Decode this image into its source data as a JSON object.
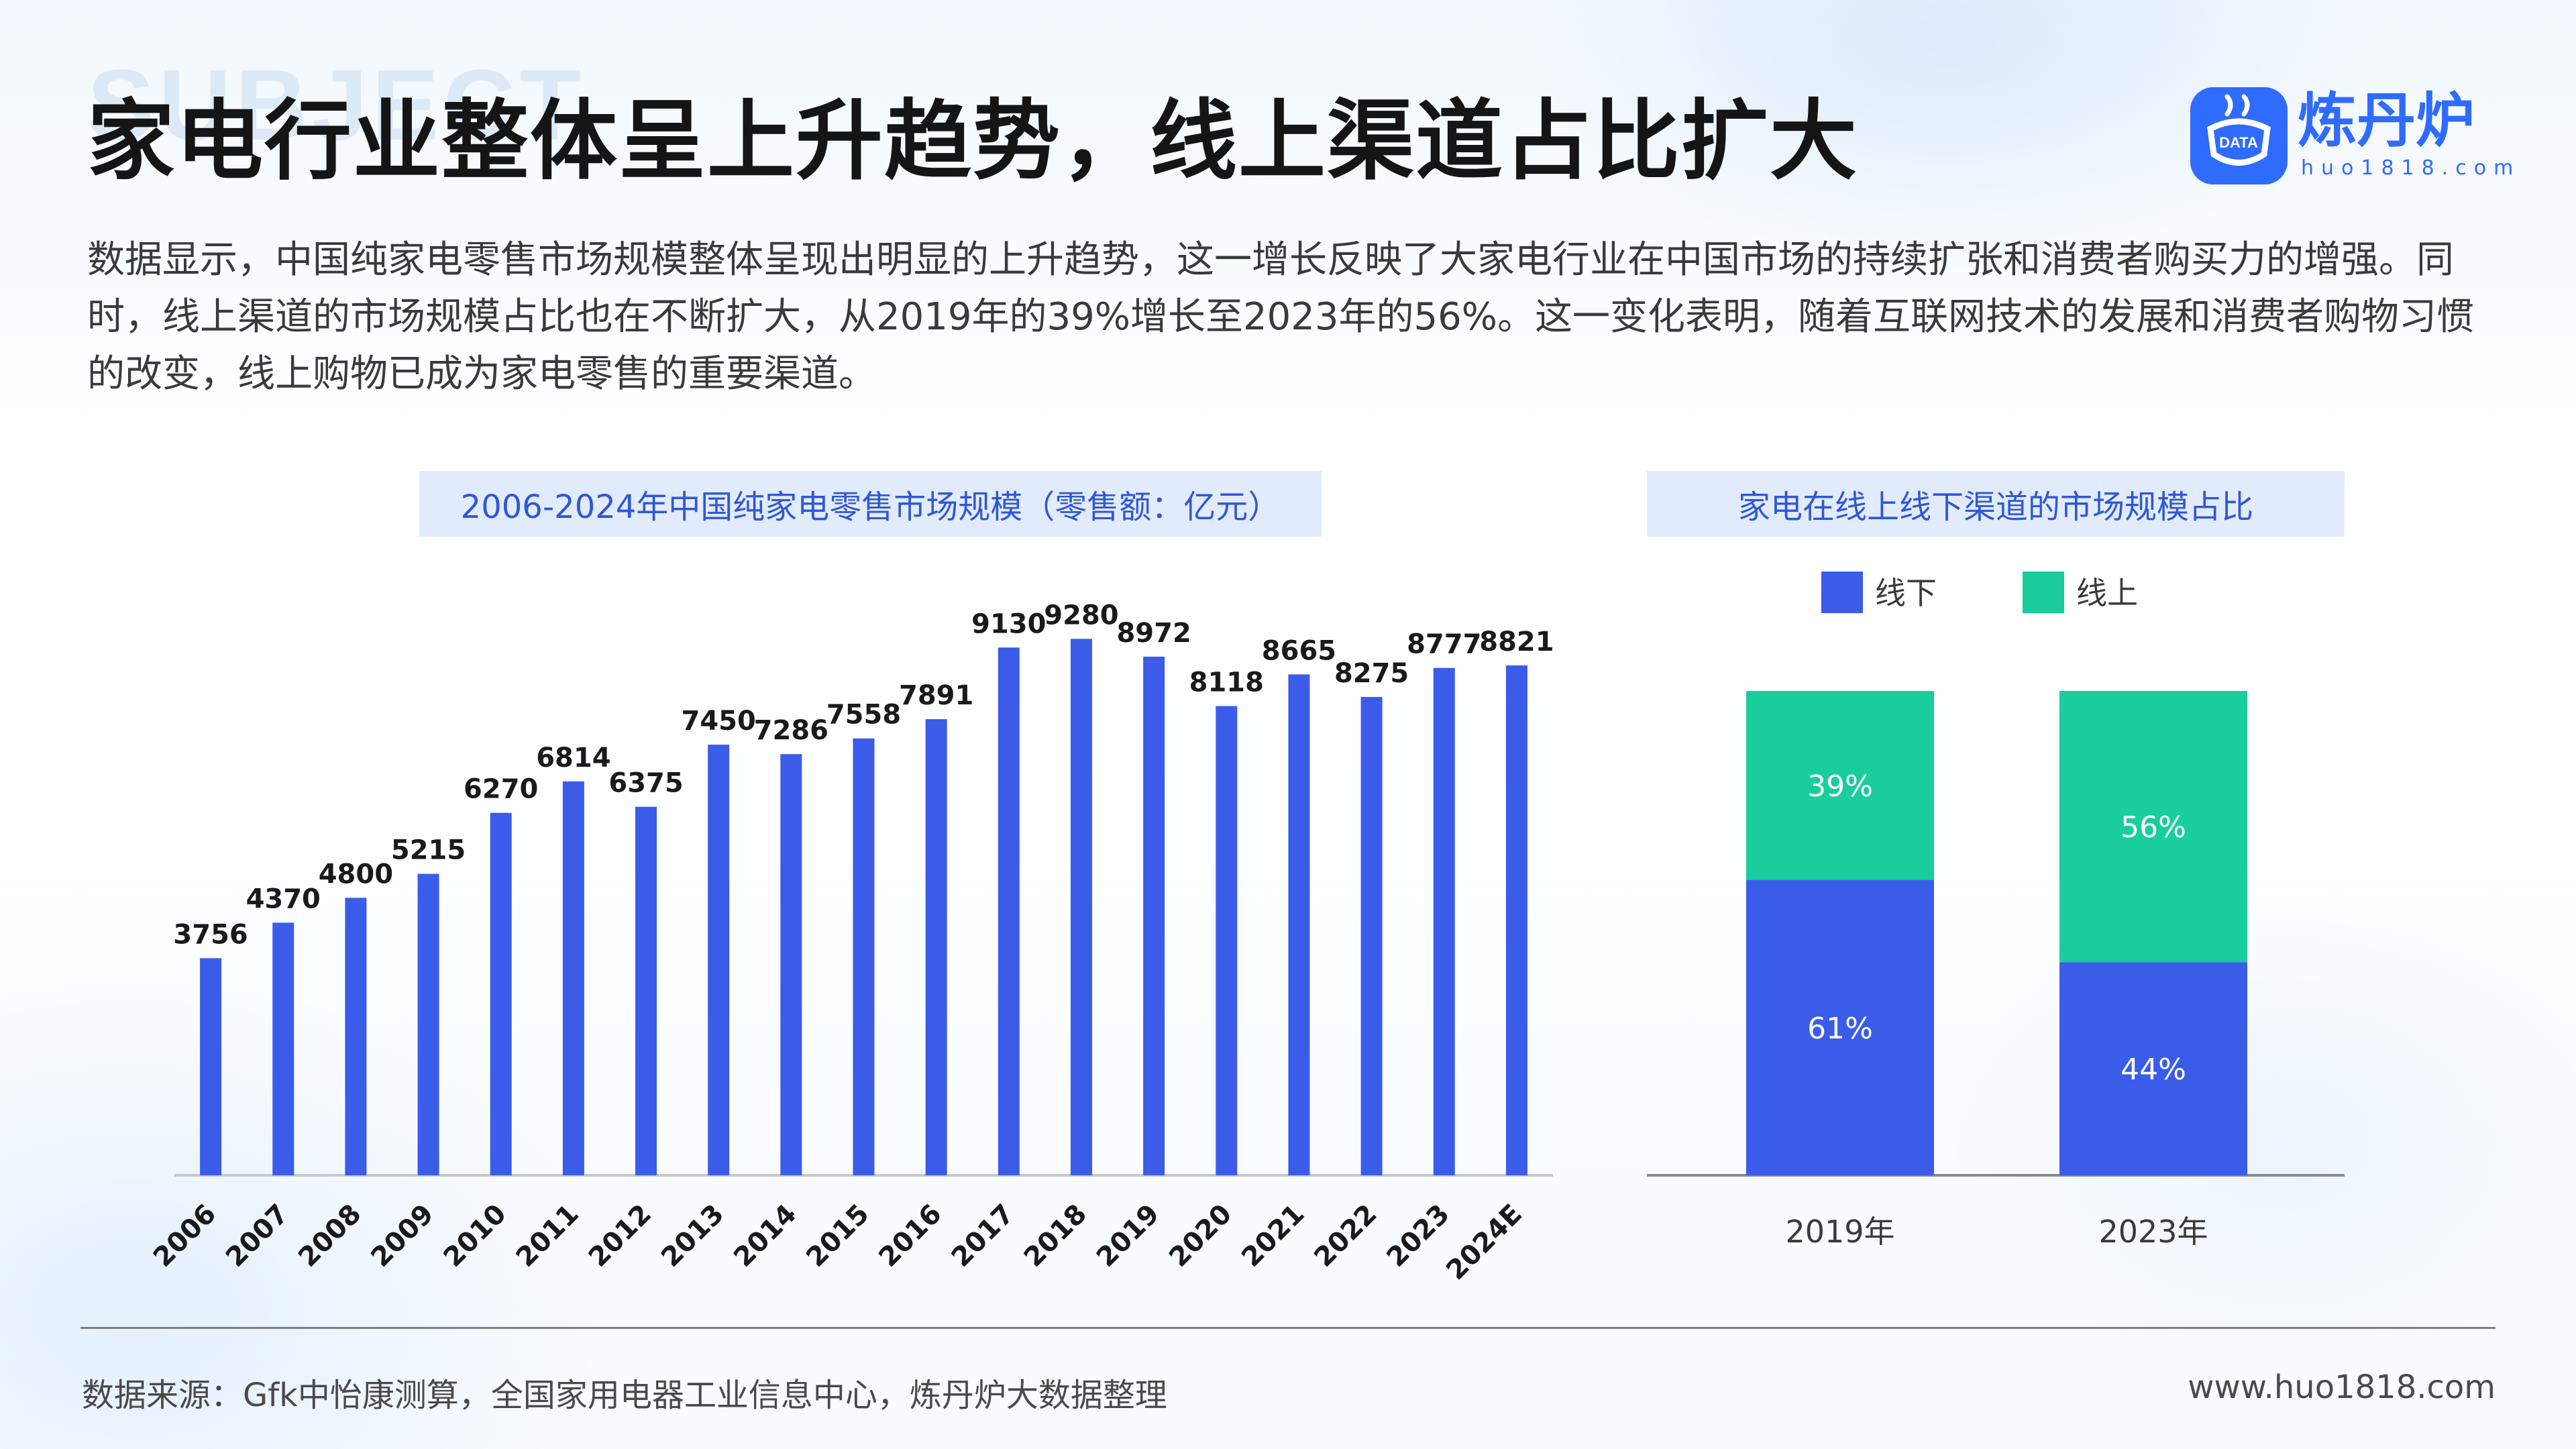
{
  "page": {
    "watermark": "SUBJECT",
    "title": "家电行业整体呈上升趋势，线上渠道占比扩大",
    "intro": "数据显示，中国纯家电零售市场规模整体呈现出明显的上升趋势，这一增长反映了大家电行业在中国市场的持续扩张和消费者购买力的增强。同时，线上渠道的市场规模占比也在不断扩大，从2019年的39%增长至2023年的56%。这一变化表明，随着互联网技术的发展和消费者购物习惯的改变，线上购物已成为家电零售的重要渠道。",
    "source": "数据来源：Gfk中怡康测算，全国家用电器工业信息中心，炼丹炉大数据整理",
    "site": "www.huo1818.com"
  },
  "logo": {
    "name": "炼丹炉",
    "url": "huo1818.com",
    "badge_text": "DATA",
    "color": "#2f6bff",
    "icon": "cauldron-data-icon"
  },
  "colors": {
    "bar": "#3a5ce8",
    "offline": "#3a5ce8",
    "online": "#19cd9c",
    "pill_bg": "#e2ebfb",
    "pill_text": "#2f58d6"
  },
  "chart_data": [
    {
      "type": "bar",
      "title": "2006-2024年中国纯家电零售市场规模（零售额：亿元）",
      "categories": [
        "2006",
        "2007",
        "2008",
        "2009",
        "2010",
        "2011",
        "2012",
        "2013",
        "2014",
        "2015",
        "2016",
        "2017",
        "2018",
        "2019",
        "2020",
        "2021",
        "2022",
        "2023",
        "2024E"
      ],
      "values": [
        3756,
        4370,
        4800,
        5215,
        6270,
        6814,
        6375,
        7450,
        7286,
        7558,
        7891,
        9130,
        9280,
        8972,
        8118,
        8665,
        8275,
        8777,
        8821
      ],
      "ylim": [
        0,
        9400
      ],
      "grid": false,
      "data_labels": true
    },
    {
      "type": "bar",
      "stacked": true,
      "percent": true,
      "title": "家电在线上线下渠道的市场规模占比",
      "categories": [
        "2019年",
        "2023年"
      ],
      "series": [
        {
          "name": "线下",
          "values": [
            61,
            44
          ],
          "labels": [
            "61%",
            "44%"
          ]
        },
        {
          "name": "线上",
          "values": [
            39,
            56
          ],
          "labels": [
            "39%",
            "56%"
          ]
        }
      ],
      "legend_position": "top",
      "ylim": [
        0,
        100
      ]
    }
  ]
}
